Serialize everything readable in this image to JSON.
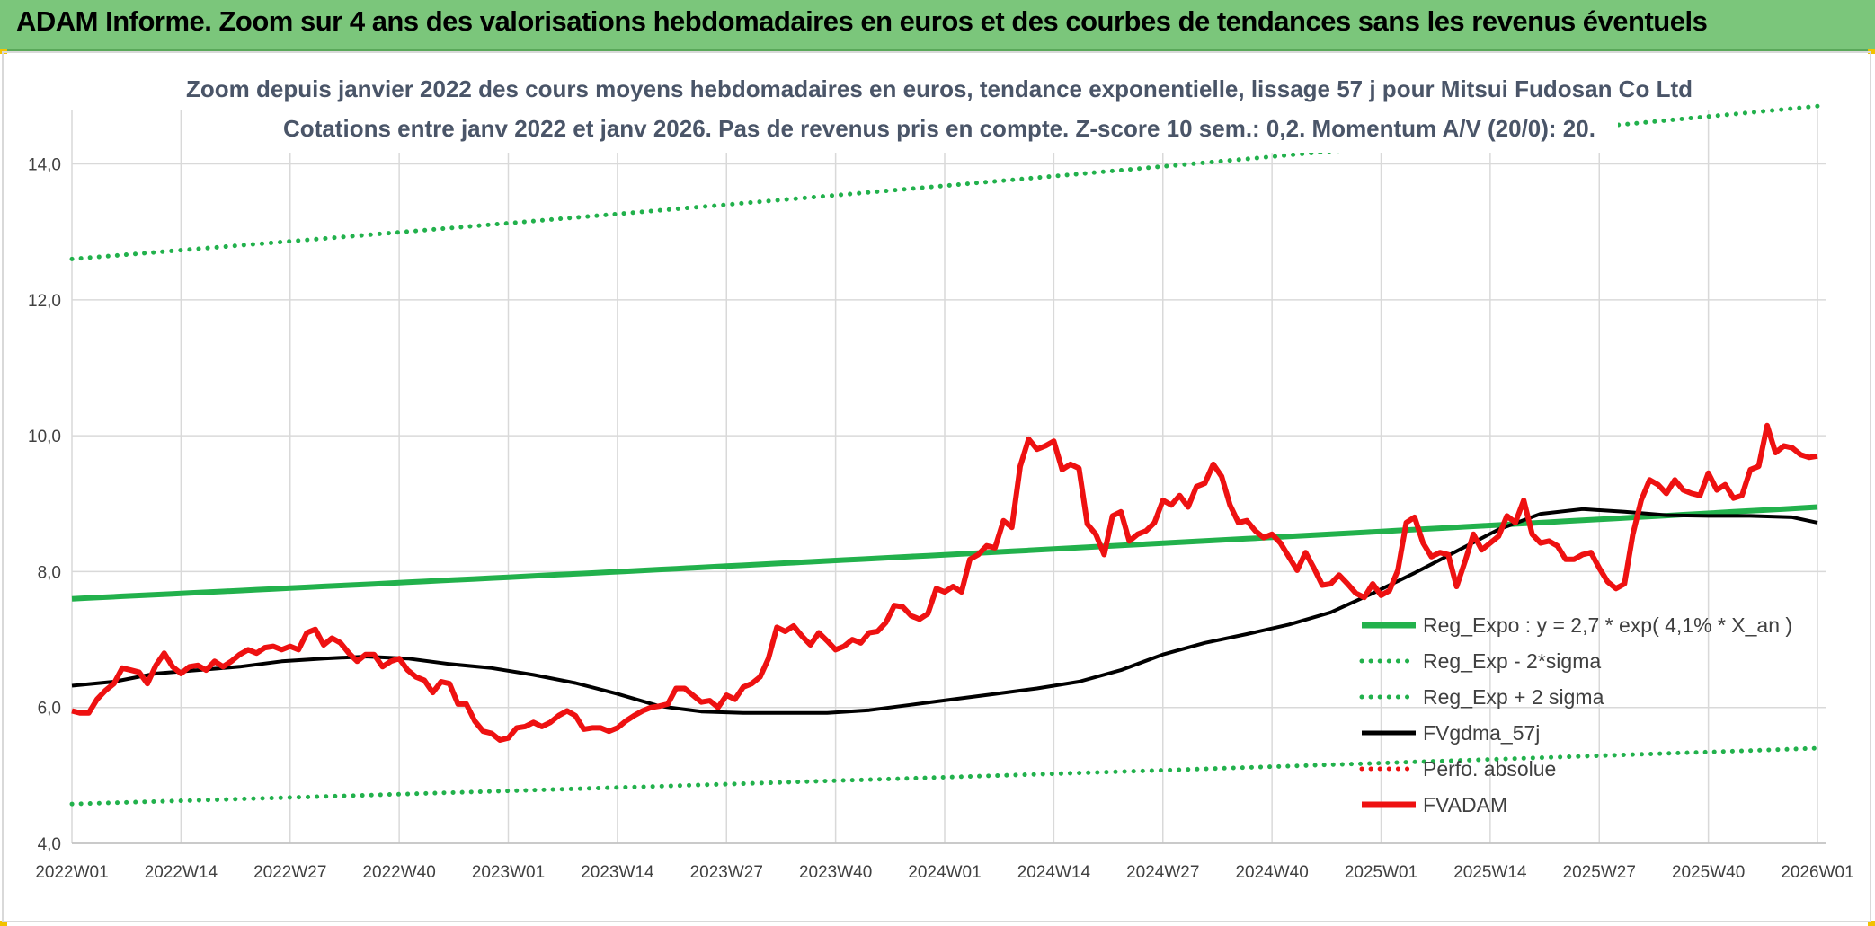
{
  "banner": {
    "title": "ADAM Informe. Zoom sur 4 ans des valorisations hebdomadaires en euros et des courbes de tendances sans les revenus éventuels"
  },
  "chart_data": {
    "type": "line",
    "title_line1": "Zoom depuis janvier 2022 des cours moyens hebdomadaires en euros, tendance exponentielle, lissage 57 j pour Mitsui Fudosan Co Ltd",
    "title_line2": "Cotations entre janv 2022 et janv 2026. Pas de revenus pris en compte. Z-score 10 sem.: 0,2. Momentum A/V (20/0): 20.",
    "xlabel": "",
    "ylabel": "",
    "ylim": [
      4.0,
      14.8
    ],
    "y_ticks": [
      "4,0",
      "6,0",
      "8,0",
      "10,0",
      "12,0",
      "14,0"
    ],
    "y_tick_values": [
      4,
      6,
      8,
      10,
      12,
      14
    ],
    "x_ticks": [
      "2022W01",
      "2022W14",
      "2022W27",
      "2022W40",
      "2023W01",
      "2023W14",
      "2023W27",
      "2023W40",
      "2024W01",
      "2024W14",
      "2024W27",
      "2024W40",
      "2025W01",
      "2025W14",
      "2025W27",
      "2025W40",
      "2026W01"
    ],
    "x_tick_index": [
      0,
      13,
      26,
      39,
      52,
      65,
      78,
      91,
      104,
      117,
      130,
      143,
      156,
      169,
      182,
      195,
      208
    ],
    "n_weeks": 209,
    "colors": {
      "green": "#22b14c",
      "black": "#000000",
      "red": "#ee1111",
      "grid": "#d9d9d9"
    },
    "series": [
      {
        "name": "Reg_Expo : y = 2,7 * exp( 4,1% *  X_an )",
        "style": "solid-green",
        "start": 7.6,
        "end": 8.95
      },
      {
        "name": "Reg_Exp - 2*sigma",
        "style": "dotted-green",
        "start": 4.58,
        "end": 5.4
      },
      {
        "name": "Reg_Exp + 2 sigma",
        "style": "dotted-green",
        "start": 12.6,
        "end": 14.85
      },
      {
        "name": "FVgdma_57j",
        "style": "solid-black",
        "points": [
          [
            0,
            6.32
          ],
          [
            5,
            6.38
          ],
          [
            10,
            6.5
          ],
          [
            15,
            6.55
          ],
          [
            20,
            6.6
          ],
          [
            25,
            6.68
          ],
          [
            30,
            6.72
          ],
          [
            35,
            6.75
          ],
          [
            40,
            6.72
          ],
          [
            45,
            6.64
          ],
          [
            50,
            6.58
          ],
          [
            55,
            6.48
          ],
          [
            60,
            6.36
          ],
          [
            65,
            6.2
          ],
          [
            70,
            6.02
          ],
          [
            75,
            5.94
          ],
          [
            80,
            5.92
          ],
          [
            85,
            5.92
          ],
          [
            90,
            5.92
          ],
          [
            95,
            5.96
          ],
          [
            100,
            6.04
          ],
          [
            105,
            6.12
          ],
          [
            110,
            6.2
          ],
          [
            115,
            6.28
          ],
          [
            120,
            6.38
          ],
          [
            125,
            6.55
          ],
          [
            130,
            6.78
          ],
          [
            135,
            6.95
          ],
          [
            140,
            7.08
          ],
          [
            145,
            7.22
          ],
          [
            150,
            7.4
          ],
          [
            155,
            7.68
          ],
          [
            160,
            7.98
          ],
          [
            165,
            8.3
          ],
          [
            170,
            8.62
          ],
          [
            175,
            8.85
          ],
          [
            180,
            8.92
          ],
          [
            185,
            8.88
          ],
          [
            190,
            8.83
          ],
          [
            195,
            8.82
          ],
          [
            200,
            8.82
          ],
          [
            205,
            8.8
          ],
          [
            208,
            8.72
          ]
        ]
      },
      {
        "name": "Perfo. absolue",
        "style": "dotted-red"
      },
      {
        "name": "FVADAM",
        "style": "solid-red",
        "points": [
          [
            0,
            5.95
          ],
          [
            1,
            5.92
          ],
          [
            2,
            5.92
          ],
          [
            3,
            6.12
          ],
          [
            4,
            6.25
          ],
          [
            5,
            6.35
          ],
          [
            6,
            6.58
          ],
          [
            7,
            6.55
          ],
          [
            8,
            6.52
          ],
          [
            9,
            6.35
          ],
          [
            10,
            6.62
          ],
          [
            11,
            6.8
          ],
          [
            12,
            6.6
          ],
          [
            13,
            6.5
          ],
          [
            14,
            6.6
          ],
          [
            15,
            6.62
          ],
          [
            16,
            6.55
          ],
          [
            17,
            6.68
          ],
          [
            18,
            6.6
          ],
          [
            19,
            6.68
          ],
          [
            20,
            6.78
          ],
          [
            21,
            6.85
          ],
          [
            22,
            6.8
          ],
          [
            23,
            6.88
          ],
          [
            24,
            6.9
          ],
          [
            25,
            6.85
          ],
          [
            26,
            6.9
          ],
          [
            27,
            6.85
          ],
          [
            28,
            7.1
          ],
          [
            29,
            7.15
          ],
          [
            30,
            6.92
          ],
          [
            31,
            7.02
          ],
          [
            32,
            6.95
          ],
          [
            33,
            6.8
          ],
          [
            34,
            6.68
          ],
          [
            35,
            6.78
          ],
          [
            36,
            6.78
          ],
          [
            37,
            6.6
          ],
          [
            38,
            6.68
          ],
          [
            39,
            6.72
          ],
          [
            40,
            6.55
          ],
          [
            41,
            6.45
          ],
          [
            42,
            6.4
          ],
          [
            43,
            6.22
          ],
          [
            44,
            6.38
          ],
          [
            45,
            6.35
          ],
          [
            46,
            6.05
          ],
          [
            47,
            6.05
          ],
          [
            48,
            5.8
          ],
          [
            49,
            5.65
          ],
          [
            50,
            5.62
          ],
          [
            51,
            5.52
          ],
          [
            52,
            5.55
          ],
          [
            53,
            5.7
          ],
          [
            54,
            5.72
          ],
          [
            55,
            5.78
          ],
          [
            56,
            5.72
          ],
          [
            57,
            5.78
          ],
          [
            58,
            5.88
          ],
          [
            59,
            5.95
          ],
          [
            60,
            5.88
          ],
          [
            61,
            5.68
          ],
          [
            62,
            5.7
          ],
          [
            63,
            5.7
          ],
          [
            64,
            5.65
          ],
          [
            65,
            5.7
          ],
          [
            66,
            5.8
          ],
          [
            67,
            5.88
          ],
          [
            68,
            5.95
          ],
          [
            69,
            6.0
          ],
          [
            70,
            6.02
          ],
          [
            71,
            6.05
          ],
          [
            72,
            6.28
          ],
          [
            73,
            6.28
          ],
          [
            74,
            6.18
          ],
          [
            75,
            6.08
          ],
          [
            76,
            6.1
          ],
          [
            77,
            6.0
          ],
          [
            78,
            6.18
          ],
          [
            79,
            6.12
          ],
          [
            80,
            6.3
          ],
          [
            81,
            6.35
          ],
          [
            82,
            6.45
          ],
          [
            83,
            6.72
          ],
          [
            84,
            7.18
          ],
          [
            85,
            7.12
          ],
          [
            86,
            7.2
          ],
          [
            87,
            7.05
          ],
          [
            88,
            6.92
          ],
          [
            89,
            7.1
          ],
          [
            90,
            6.98
          ],
          [
            91,
            6.85
          ],
          [
            92,
            6.9
          ],
          [
            93,
            7.0
          ],
          [
            94,
            6.95
          ],
          [
            95,
            7.1
          ],
          [
            96,
            7.12
          ],
          [
            97,
            7.25
          ],
          [
            98,
            7.5
          ],
          [
            99,
            7.48
          ],
          [
            100,
            7.35
          ],
          [
            101,
            7.3
          ],
          [
            102,
            7.38
          ],
          [
            103,
            7.75
          ],
          [
            104,
            7.7
          ],
          [
            105,
            7.78
          ],
          [
            106,
            7.7
          ],
          [
            107,
            8.18
          ],
          [
            108,
            8.25
          ],
          [
            109,
            8.38
          ],
          [
            110,
            8.35
          ],
          [
            111,
            8.75
          ],
          [
            112,
            8.65
          ],
          [
            113,
            9.55
          ],
          [
            114,
            9.95
          ],
          [
            115,
            9.8
          ],
          [
            116,
            9.85
          ],
          [
            117,
            9.92
          ],
          [
            118,
            9.5
          ],
          [
            119,
            9.58
          ],
          [
            120,
            9.52
          ],
          [
            121,
            8.7
          ],
          [
            122,
            8.55
          ],
          [
            123,
            8.25
          ],
          [
            124,
            8.82
          ],
          [
            125,
            8.88
          ],
          [
            126,
            8.45
          ],
          [
            127,
            8.55
          ],
          [
            128,
            8.6
          ],
          [
            129,
            8.72
          ],
          [
            130,
            9.05
          ],
          [
            131,
            8.98
          ],
          [
            132,
            9.12
          ],
          [
            133,
            8.95
          ],
          [
            134,
            9.25
          ],
          [
            135,
            9.3
          ],
          [
            136,
            9.58
          ],
          [
            137,
            9.4
          ],
          [
            138,
            8.98
          ],
          [
            139,
            8.72
          ],
          [
            140,
            8.75
          ],
          [
            141,
            8.6
          ],
          [
            142,
            8.5
          ],
          [
            143,
            8.55
          ],
          [
            144,
            8.42
          ],
          [
            145,
            8.22
          ],
          [
            146,
            8.02
          ],
          [
            147,
            8.28
          ],
          [
            148,
            8.05
          ],
          [
            149,
            7.8
          ],
          [
            150,
            7.82
          ],
          [
            151,
            7.95
          ],
          [
            152,
            7.82
          ],
          [
            153,
            7.68
          ],
          [
            154,
            7.62
          ],
          [
            155,
            7.82
          ],
          [
            156,
            7.65
          ],
          [
            157,
            7.72
          ],
          [
            158,
            8.02
          ],
          [
            159,
            8.72
          ],
          [
            160,
            8.8
          ],
          [
            161,
            8.42
          ],
          [
            162,
            8.22
          ],
          [
            163,
            8.28
          ],
          [
            164,
            8.25
          ],
          [
            165,
            7.78
          ],
          [
            166,
            8.15
          ],
          [
            167,
            8.55
          ],
          [
            168,
            8.32
          ],
          [
            169,
            8.42
          ],
          [
            170,
            8.52
          ],
          [
            171,
            8.82
          ],
          [
            172,
            8.72
          ],
          [
            173,
            9.05
          ],
          [
            174,
            8.55
          ],
          [
            175,
            8.42
          ],
          [
            176,
            8.45
          ],
          [
            177,
            8.38
          ],
          [
            178,
            8.18
          ],
          [
            179,
            8.18
          ],
          [
            180,
            8.25
          ],
          [
            181,
            8.28
          ],
          [
            182,
            8.05
          ],
          [
            183,
            7.85
          ],
          [
            184,
            7.75
          ],
          [
            185,
            7.82
          ],
          [
            186,
            8.55
          ],
          [
            187,
            9.05
          ],
          [
            188,
            9.35
          ],
          [
            189,
            9.28
          ],
          [
            190,
            9.15
          ],
          [
            191,
            9.35
          ],
          [
            192,
            9.2
          ],
          [
            193,
            9.15
          ],
          [
            194,
            9.12
          ],
          [
            195,
            9.45
          ],
          [
            196,
            9.2
          ],
          [
            197,
            9.28
          ],
          [
            198,
            9.08
          ],
          [
            199,
            9.12
          ],
          [
            200,
            9.5
          ],
          [
            201,
            9.55
          ],
          [
            202,
            10.15
          ],
          [
            203,
            9.75
          ],
          [
            204,
            9.85
          ],
          [
            205,
            9.82
          ],
          [
            206,
            9.72
          ],
          [
            207,
            9.68
          ],
          [
            208,
            9.7
          ]
        ]
      }
    ],
    "legend_position": "bottom-right"
  }
}
